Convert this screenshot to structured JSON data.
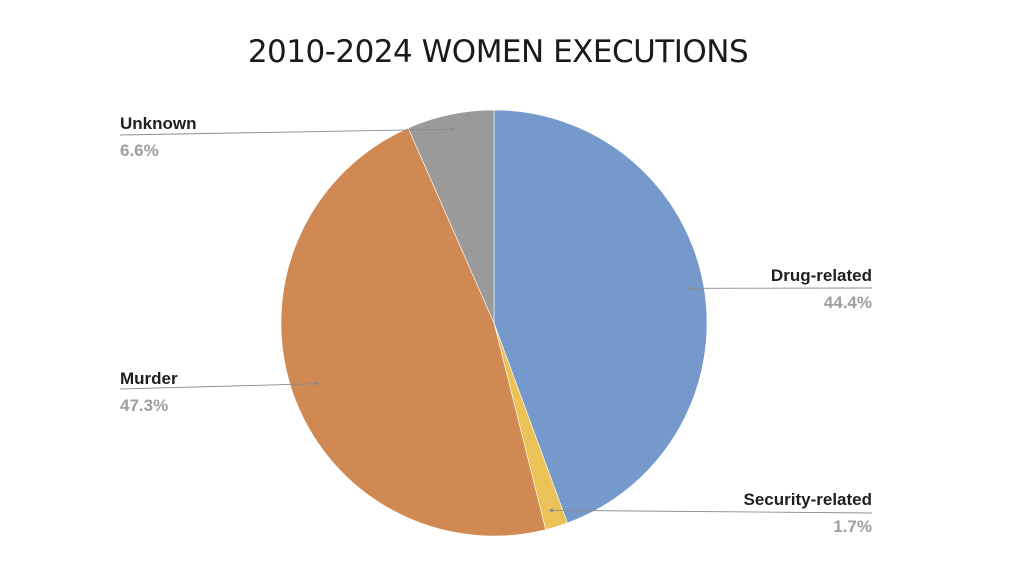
{
  "chart_data": {
    "type": "pie",
    "title": "2010-2024 WOMEN EXECUTIONS",
    "start_angle_deg": 0,
    "direction": "clockwise",
    "slices": [
      {
        "label": "Drug-related",
        "value": 44.4,
        "value_label": "44.4%",
        "color": "#7599cb"
      },
      {
        "label": "Security-related",
        "value": 1.7,
        "value_label": "1.7%",
        "color": "#ebc257"
      },
      {
        "label": "Murder",
        "value": 47.3,
        "value_label": "47.3%",
        "color": "#d08952"
      },
      {
        "label": "Unknown",
        "value": 6.6,
        "value_label": "6.6%",
        "color": "#9a9a9a"
      }
    ],
    "legend": "none",
    "label_style": "outside labels with leader lines"
  }
}
